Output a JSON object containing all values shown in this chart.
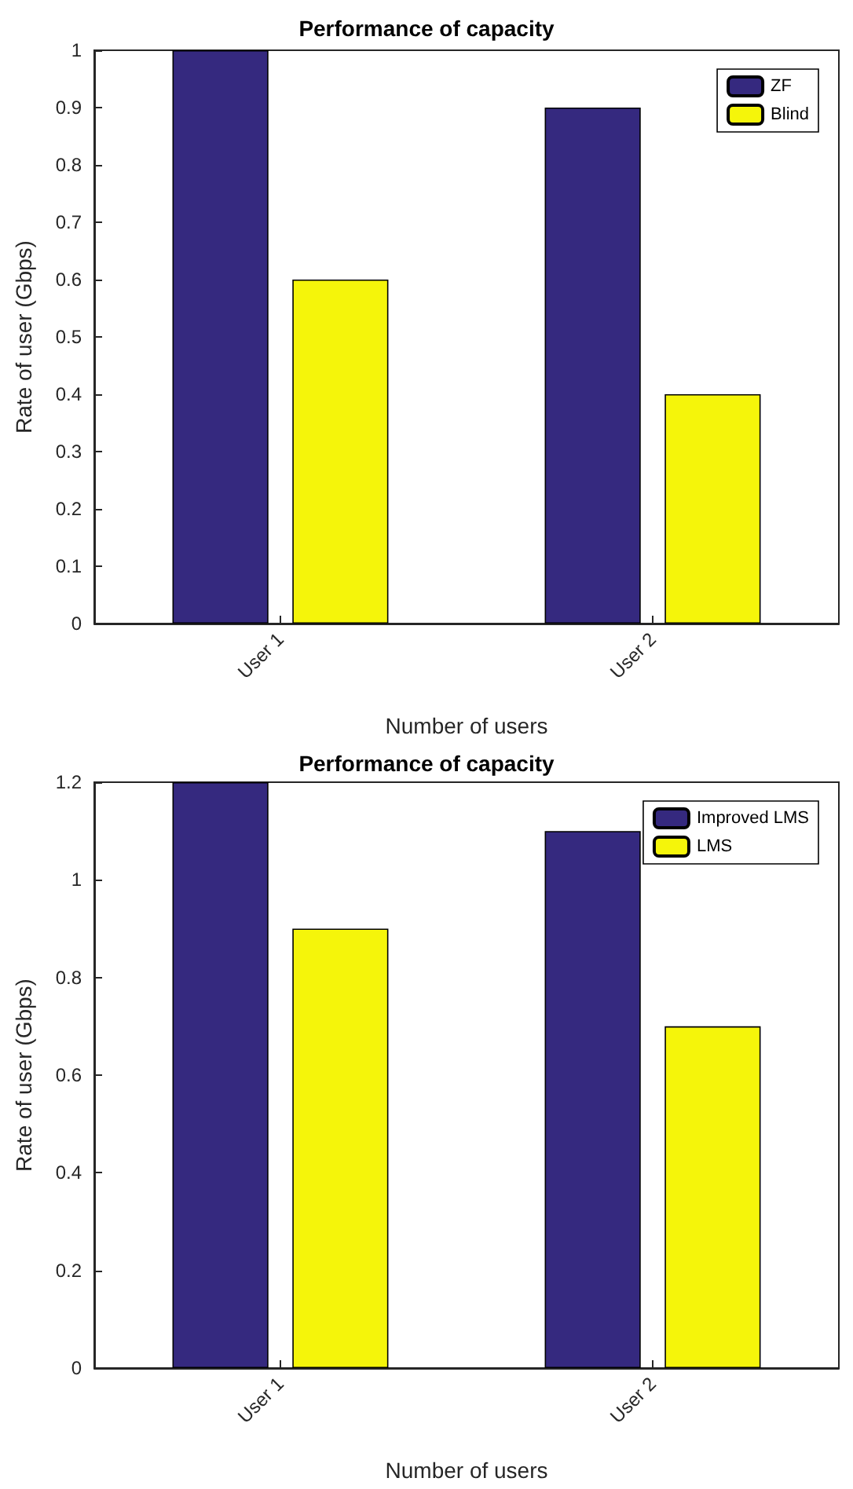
{
  "chart_data": [
    {
      "type": "bar",
      "title": "Performance of capacity",
      "xlabel": "Number of users",
      "ylabel": "Rate of user (Gbps)",
      "categories": [
        "User 1",
        "User 2"
      ],
      "series": [
        {
          "name": "ZF",
          "color": "#35297f",
          "values": [
            1,
            0.9
          ]
        },
        {
          "name": "Blind",
          "color": "#f5f50a",
          "values": [
            0.6,
            0.4
          ]
        }
      ],
      "ylim": [
        0,
        1
      ],
      "yticks": [
        0,
        0.1,
        0.2,
        0.3,
        0.4,
        0.5,
        0.6,
        0.7,
        0.8,
        0.9,
        1
      ],
      "grid": false,
      "legend": "top right"
    },
    {
      "type": "bar",
      "title": "Performance of capacity",
      "xlabel": "Number of users",
      "ylabel": "Rate of user (Gbps)",
      "categories": [
        "User 1",
        "User 2"
      ],
      "series": [
        {
          "name": "Improved LMS",
          "color": "#35297f",
          "values": [
            1.2,
            1.1
          ]
        },
        {
          "name": "LMS",
          "color": "#f5f50a",
          "values": [
            0.9,
            0.7
          ]
        }
      ],
      "ylim": [
        0,
        1.2
      ],
      "yticks": [
        0,
        0.2,
        0.4,
        0.6,
        0.8,
        1,
        1.2
      ],
      "grid": false,
      "legend": "top right"
    }
  ]
}
